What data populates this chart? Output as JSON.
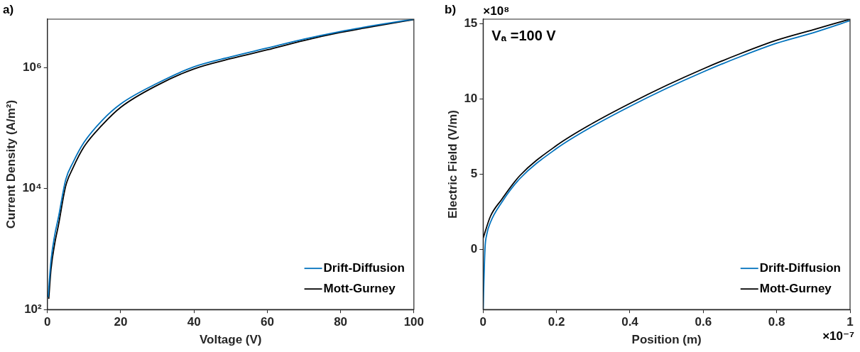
{
  "chart_data": [
    {
      "type": "line",
      "title": "a)",
      "xlabel": "Voltage (V)",
      "ylabel": "Current Density (A/m²)",
      "log": "y",
      "xlim": [
        0,
        100
      ],
      "xticks": [
        0,
        20,
        40,
        60,
        80,
        100
      ],
      "ylim": [
        100,
        6300000
      ],
      "yticks": [
        {
          "value": 100,
          "label": "10²"
        },
        {
          "value": 10000,
          "label": "10⁴"
        },
        {
          "value": 1000000,
          "label": "10⁶"
        }
      ],
      "grid": false,
      "legend": "bottom right",
      "line_style": "solid",
      "marker": "none",
      "series": [
        {
          "name": "Drift-Diffusion",
          "color": "#0072bd",
          "x": [
            0.2,
            1,
            2,
            3,
            5,
            7,
            10,
            15,
            20,
            30,
            40,
            50,
            60,
            70,
            80,
            90,
            100
          ],
          "values": [
            160,
            650,
            1700,
            3300,
            14000,
            27000,
            58000,
            135000,
            250000,
            550000,
            1030000,
            1500000,
            2100000,
            2950000,
            3950000,
            5050000,
            6300000
          ]
        },
        {
          "name": "Mott-Gurney",
          "color": "#000000",
          "x": [
            0.37,
            1,
            2,
            3,
            5,
            7,
            10,
            15,
            20,
            30,
            40,
            50,
            60,
            70,
            80,
            90,
            100
          ],
          "values": [
            150,
            470,
            1230,
            2450,
            11000,
            22000,
            49000,
            113000,
            220000,
            510000,
            950000,
            1400000,
            1960000,
            2800000,
            3800000,
            4900000,
            6200000
          ]
        }
      ]
    },
    {
      "type": "line",
      "title": "b)",
      "xlabel": "Position (m)",
      "ylabel": "Electric Field (V/m)",
      "annotations": [
        "Vₐ =100 V",
        "×10⁸",
        "×10⁻⁷"
      ],
      "xlim": [
        0,
        1
      ],
      "xticks": [
        0,
        0.2,
        0.4,
        0.6,
        0.8,
        1
      ],
      "ylim": [
        -4,
        15.3
      ],
      "yticks": [
        0,
        5,
        10,
        15
      ],
      "grid": false,
      "legend": "bottom right",
      "line_style": "solid",
      "marker": "none",
      "series": [
        {
          "name": "Drift-Diffusion",
          "color": "#0072bd",
          "x": [
            0,
            0.005,
            0.01,
            0.02,
            0.05,
            0.1,
            0.2,
            0.3,
            0.4,
            0.5,
            0.6,
            0.7,
            0.8,
            0.9,
            1
          ],
          "values": [
            -4,
            0,
            1,
            1.8,
            3.1,
            4.7,
            6.7,
            8.2,
            9.5,
            10.7,
            11.8,
            12.8,
            13.7,
            14.4,
            15.2
          ]
        },
        {
          "name": "Mott-Gurney",
          "color": "#000000",
          "x": [
            0,
            0.02,
            0.05,
            0.1,
            0.2,
            0.3,
            0.4,
            0.5,
            0.6,
            0.7,
            0.8,
            0.9,
            1
          ],
          "values": [
            0.75,
            2.2,
            3.3,
            4.9,
            6.9,
            8.4,
            9.7,
            10.9,
            12,
            13,
            13.9,
            14.6,
            15.3
          ]
        }
      ]
    }
  ]
}
